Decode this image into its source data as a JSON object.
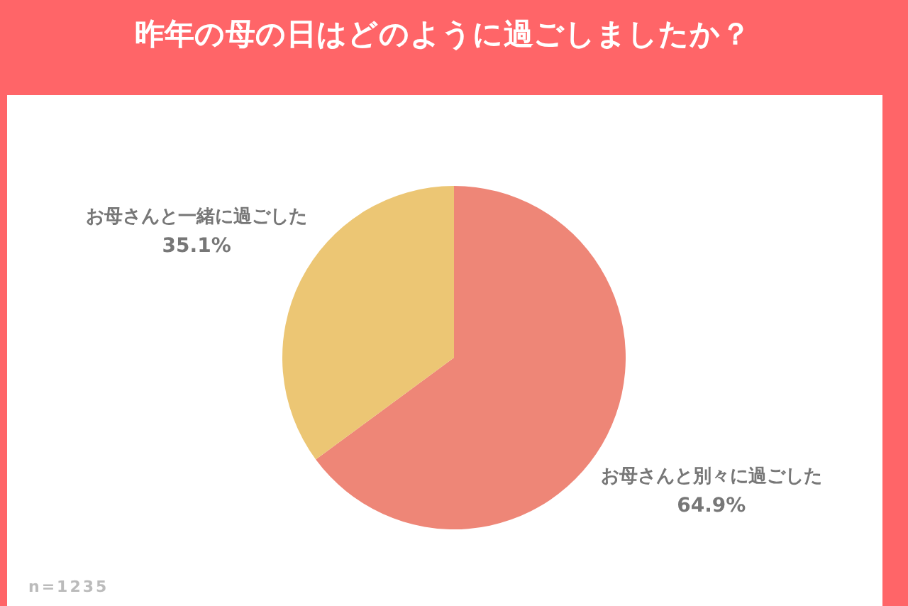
{
  "chart_data": {
    "type": "pie",
    "title": "昨年の母の日はどのように過ごしましたか？",
    "categories": [
      "お母さんと別々に過ごした",
      "お母さんと一緒に過ごした"
    ],
    "values": [
      64.9,
      35.1
    ],
    "colors": [
      "#ee8677",
      "#ecc674"
    ],
    "value_labels": [
      "64.9%",
      "35.1%"
    ],
    "annotations": [
      "n=1235"
    ]
  }
}
